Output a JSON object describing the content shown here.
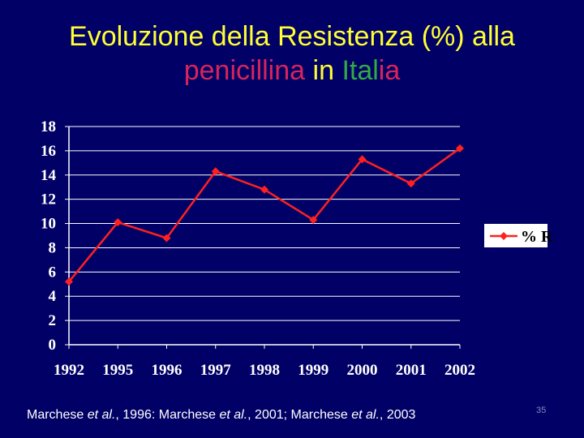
{
  "title": {
    "line1": "Evoluzione della Resistenza (%) alla",
    "line2_part1": "penicillina",
    "line2_part2": "in",
    "line2_part3": "Ital",
    "line2_part4": "ia"
  },
  "colors": {
    "background": "#000066",
    "title_yellow": "#ffff33",
    "title_red": "#d8245a",
    "title_green": "#33aa44",
    "series_red": "#ff2020"
  },
  "chart_data": {
    "type": "line",
    "categories": [
      "1992",
      "1995",
      "1996",
      "1997",
      "1998",
      "1999",
      "2000",
      "2001",
      "2002"
    ],
    "series": [
      {
        "name": "% R",
        "values": [
          5.2,
          10.1,
          8.8,
          14.3,
          12.8,
          10.3,
          15.3,
          13.3,
          16.2
        ],
        "color": "#ff2020"
      }
    ],
    "y_ticks": [
      "0",
      "2",
      "4",
      "6",
      "8",
      "10",
      "12",
      "14",
      "16",
      "18"
    ],
    "ylim": [
      0,
      18
    ],
    "grid": true,
    "legend_position": "right"
  },
  "citation": {
    "p1": "Marchese ",
    "p2": "et al.",
    "p3": ", 1996: Marchese ",
    "p4": "et al.",
    "p5": ", 2001; Marchese ",
    "p6": "et al.",
    "p7": ", 2003"
  },
  "page_number": "35"
}
